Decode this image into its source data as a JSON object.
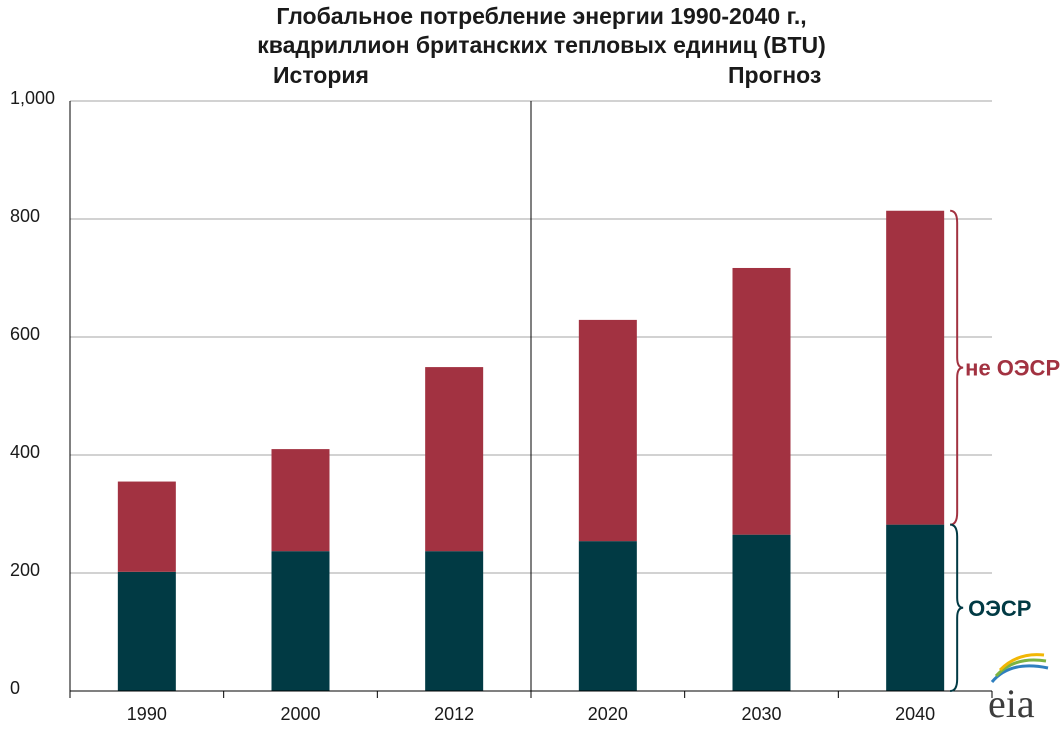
{
  "chart_data": {
    "type": "bar",
    "stacked": true,
    "title": "Глобальное потребление энергии 1990-2040 г.,",
    "subtitle": "квадриллион британских тепловых единиц (BTU)",
    "sections": [
      {
        "label": "История"
      },
      {
        "label": "Прогноз"
      }
    ],
    "categories": [
      "1990",
      "2000",
      "2012",
      "2020",
      "2030",
      "2040"
    ],
    "series": [
      {
        "name": "ОЭСР",
        "color": "#013a44",
        "values": [
          202,
          237,
          237,
          254,
          265,
          282
        ]
      },
      {
        "name": "не ОЭСР",
        "color": "#a23241",
        "values": [
          153,
          173,
          312,
          375,
          452,
          532
        ]
      }
    ],
    "ylim": [
      0,
      1000
    ],
    "yticks": [
      "0",
      "200",
      "400",
      "600",
      "800",
      "1,000"
    ],
    "ytick_values": [
      0,
      200,
      400,
      600,
      800,
      1000
    ],
    "divider_after_index": 2,
    "grid": true,
    "xlabel": "",
    "ylabel": ""
  },
  "logo": {
    "text": "eia",
    "icon": "eia-logo-icon"
  }
}
